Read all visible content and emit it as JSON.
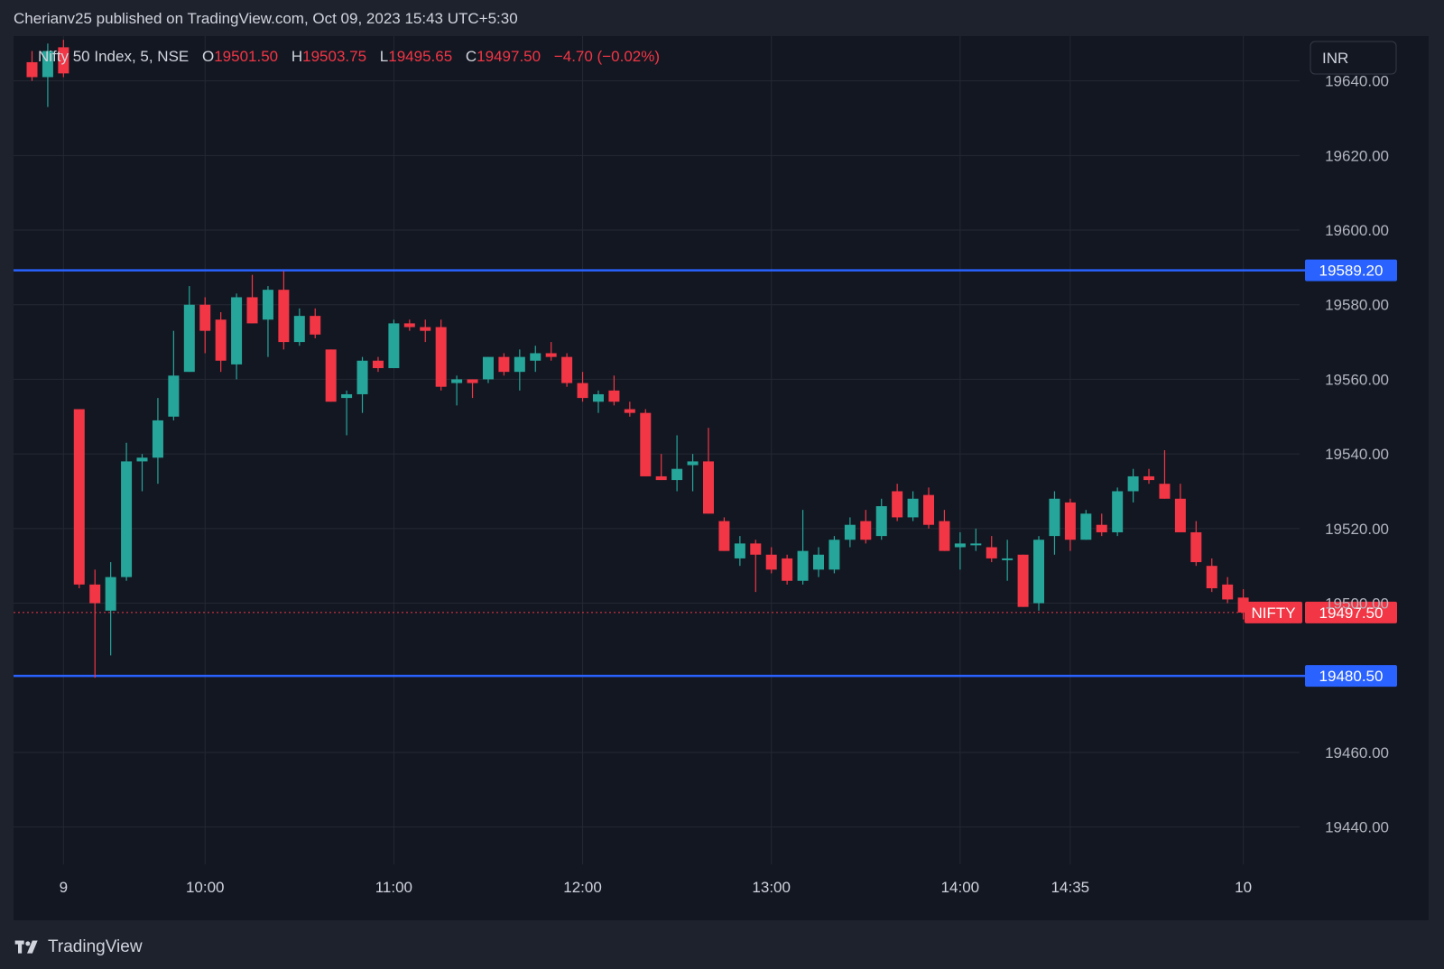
{
  "header": {
    "text": "Cherianv25 published on TradingView.com, Oct 09, 2023 15:43 UTC+5:30"
  },
  "footer": {
    "brand": "TradingView"
  },
  "legend": {
    "symbol": "Nifty 50 Index, 5, NSE",
    "o_label": "O",
    "o_value": "19501.50",
    "h_label": "H",
    "h_value": "19503.75",
    "l_label": "L",
    "l_value": "19495.65",
    "c_label": "C",
    "c_value": "19497.50",
    "change": "−4.70 (−0.02%)"
  },
  "currency": "INR",
  "colors": {
    "up": "#26a69a",
    "down": "#f23645",
    "hline": "#2962ff",
    "background": "#131722",
    "grid": "#242833",
    "text": "#d1d4dc"
  },
  "chart_data": {
    "type": "candlestick",
    "title": "Nifty 50 Index, 5, NSE",
    "x_ticks": [
      {
        "label": "9",
        "bar": 2
      },
      {
        "label": "10:00",
        "bar": 11
      },
      {
        "label": "11:00",
        "bar": 23
      },
      {
        "label": "12:00",
        "bar": 35
      },
      {
        "label": "13:00",
        "bar": 47
      },
      {
        "label": "14:00",
        "bar": 59
      },
      {
        "label": "14:35",
        "bar": 66
      },
      {
        "label": "10",
        "bar": 77
      }
    ],
    "y_ticks": [
      "19640.00",
      "19620.00",
      "19600.00",
      "19580.00",
      "19560.00",
      "19540.00",
      "19520.00",
      "19500.00",
      "19460.00",
      "19440.00"
    ],
    "ylim": [
      19430,
      19652
    ],
    "grid": true,
    "horizontal_lines": [
      {
        "value": 19589.2,
        "label": "19589.20"
      },
      {
        "value": 19480.5,
        "label": "19480.50"
      }
    ],
    "last_price": {
      "value": 19497.5,
      "label": "19497.50",
      "tag": "NIFTY"
    },
    "candles": [
      {
        "o": 19645,
        "h": 19648,
        "l": 19640,
        "c": 19641
      },
      {
        "o": 19641,
        "h": 19650,
        "l": 19633,
        "c": 19648
      },
      {
        "o": 19649,
        "h": 19651,
        "l": 19641,
        "c": 19642
      },
      {
        "o": 19552,
        "h": 19552,
        "l": 19504,
        "c": 19505
      },
      {
        "o": 19505,
        "h": 19509,
        "l": 19480,
        "c": 19500
      },
      {
        "o": 19498,
        "h": 19511,
        "l": 19486,
        "c": 19507
      },
      {
        "o": 19507,
        "h": 19543,
        "l": 19506,
        "c": 19538
      },
      {
        "o": 19538,
        "h": 19540,
        "l": 19530,
        "c": 19539
      },
      {
        "o": 19539,
        "h": 19555,
        "l": 19532,
        "c": 19549
      },
      {
        "o": 19550,
        "h": 19573,
        "l": 19549,
        "c": 19561
      },
      {
        "o": 19562,
        "h": 19585,
        "l": 19562,
        "c": 19580
      },
      {
        "o": 19580,
        "h": 19582,
        "l": 19567,
        "c": 19573
      },
      {
        "o": 19576,
        "h": 19578,
        "l": 19562,
        "c": 19565
      },
      {
        "o": 19564,
        "h": 19583,
        "l": 19560,
        "c": 19582
      },
      {
        "o": 19582,
        "h": 19588,
        "l": 19575,
        "c": 19575
      },
      {
        "o": 19576,
        "h": 19585,
        "l": 19566,
        "c": 19584
      },
      {
        "o": 19584,
        "h": 19589,
        "l": 19568,
        "c": 19570
      },
      {
        "o": 19570,
        "h": 19579,
        "l": 19569,
        "c": 19577
      },
      {
        "o": 19577,
        "h": 19579,
        "l": 19571,
        "c": 19572
      },
      {
        "o": 19568,
        "h": 19568,
        "l": 19554,
        "c": 19554
      },
      {
        "o": 19555,
        "h": 19557,
        "l": 19545,
        "c": 19556
      },
      {
        "o": 19556,
        "h": 19566,
        "l": 19551,
        "c": 19565
      },
      {
        "o": 19565,
        "h": 19566,
        "l": 19562,
        "c": 19563
      },
      {
        "o": 19563,
        "h": 19576,
        "l": 19563,
        "c": 19575
      },
      {
        "o": 19575,
        "h": 19576,
        "l": 19573,
        "c": 19574
      },
      {
        "o": 19574,
        "h": 19576,
        "l": 19570,
        "c": 19573
      },
      {
        "o": 19574,
        "h": 19576,
        "l": 19557,
        "c": 19558
      },
      {
        "o": 19559,
        "h": 19561,
        "l": 19553,
        "c": 19560
      },
      {
        "o": 19560,
        "h": 19560,
        "l": 19555,
        "c": 19559
      },
      {
        "o": 19560,
        "h": 19566,
        "l": 19559,
        "c": 19566
      },
      {
        "o": 19566,
        "h": 19567,
        "l": 19561,
        "c": 19562
      },
      {
        "o": 19562,
        "h": 19568,
        "l": 19557,
        "c": 19566
      },
      {
        "o": 19565,
        "h": 19569,
        "l": 19562,
        "c": 19567
      },
      {
        "o": 19567,
        "h": 19570,
        "l": 19565,
        "c": 19566
      },
      {
        "o": 19566,
        "h": 19567,
        "l": 19558,
        "c": 19559
      },
      {
        "o": 19559,
        "h": 19562,
        "l": 19554,
        "c": 19555
      },
      {
        "o": 19554,
        "h": 19557,
        "l": 19551,
        "c": 19556
      },
      {
        "o": 19557,
        "h": 19561,
        "l": 19553,
        "c": 19554
      },
      {
        "o": 19552,
        "h": 19554,
        "l": 19550,
        "c": 19551
      },
      {
        "o": 19551,
        "h": 19552,
        "l": 19534,
        "c": 19534
      },
      {
        "o": 19534,
        "h": 19540,
        "l": 19533,
        "c": 19533
      },
      {
        "o": 19533,
        "h": 19545,
        "l": 19530,
        "c": 19536
      },
      {
        "o": 19537,
        "h": 19540,
        "l": 19530,
        "c": 19538
      },
      {
        "o": 19538,
        "h": 19547,
        "l": 19524,
        "c": 19524
      },
      {
        "o": 19522,
        "h": 19523,
        "l": 19514,
        "c": 19514
      },
      {
        "o": 19512,
        "h": 19518,
        "l": 19510,
        "c": 19516
      },
      {
        "o": 19516,
        "h": 19517,
        "l": 19503,
        "c": 19513
      },
      {
        "o": 19513,
        "h": 19515,
        "l": 19508,
        "c": 19509
      },
      {
        "o": 19512,
        "h": 19513,
        "l": 19505,
        "c": 19506
      },
      {
        "o": 19506,
        "h": 19525,
        "l": 19505,
        "c": 19514
      },
      {
        "o": 19509,
        "h": 19515,
        "l": 19507,
        "c": 19513
      },
      {
        "o": 19509,
        "h": 19518,
        "l": 19508,
        "c": 19517
      },
      {
        "o": 19517,
        "h": 19523,
        "l": 19515,
        "c": 19521
      },
      {
        "o": 19522,
        "h": 19525,
        "l": 19516,
        "c": 19517
      },
      {
        "o": 19518,
        "h": 19528,
        "l": 19517,
        "c": 19526
      },
      {
        "o": 19530,
        "h": 19532,
        "l": 19522,
        "c": 19523
      },
      {
        "o": 19523,
        "h": 19530,
        "l": 19522,
        "c": 19528
      },
      {
        "o": 19529,
        "h": 19531,
        "l": 19520,
        "c": 19521
      },
      {
        "o": 19522,
        "h": 19525,
        "l": 19514,
        "c": 19514
      },
      {
        "o": 19515,
        "h": 19519,
        "l": 19509,
        "c": 19516
      },
      {
        "o": 19516,
        "h": 19520,
        "l": 19514,
        "c": 19516
      },
      {
        "o": 19515,
        "h": 19518,
        "l": 19511,
        "c": 19512
      },
      {
        "o": 19512,
        "h": 19517,
        "l": 19506,
        "c": 19512
      },
      {
        "o": 19513,
        "h": 19513,
        "l": 19499,
        "c": 19499
      },
      {
        "o": 19500,
        "h": 19518,
        "l": 19498,
        "c": 19517
      },
      {
        "o": 19518,
        "h": 19530,
        "l": 19513,
        "c": 19528
      },
      {
        "o": 19527,
        "h": 19528,
        "l": 19514,
        "c": 19517
      },
      {
        "o": 19517,
        "h": 19525,
        "l": 19517,
        "c": 19524
      },
      {
        "o": 19521,
        "h": 19524,
        "l": 19518,
        "c": 19519
      },
      {
        "o": 19519,
        "h": 19531,
        "l": 19518,
        "c": 19530
      },
      {
        "o": 19530,
        "h": 19536,
        "l": 19527,
        "c": 19534
      },
      {
        "o": 19534,
        "h": 19536,
        "l": 19532,
        "c": 19533
      },
      {
        "o": 19532,
        "h": 19541,
        "l": 19528,
        "c": 19528
      },
      {
        "o": 19528,
        "h": 19532,
        "l": 19519,
        "c": 19519
      },
      {
        "o": 19519,
        "h": 19522,
        "l": 19510,
        "c": 19511
      },
      {
        "o": 19510,
        "h": 19512,
        "l": 19503,
        "c": 19504
      },
      {
        "o": 19505,
        "h": 19507,
        "l": 19500,
        "c": 19501
      },
      {
        "o": 19501.5,
        "h": 19503.75,
        "l": 19495.65,
        "c": 19497.5
      }
    ]
  }
}
